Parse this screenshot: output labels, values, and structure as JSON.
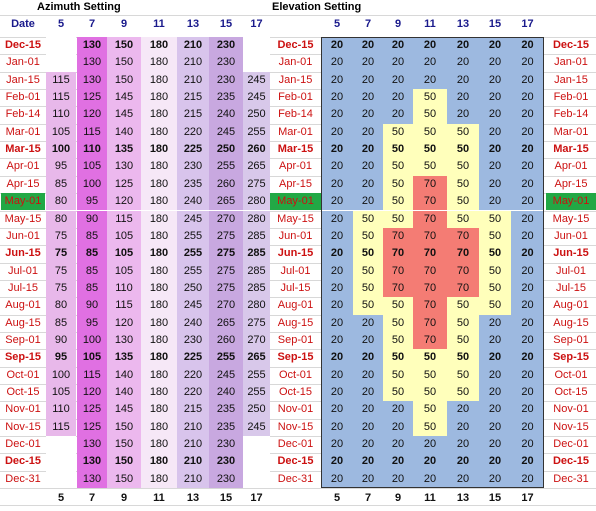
{
  "sections": {
    "azimuth_title": "Azimuth Setting",
    "elevation_title": "Elevation Setting"
  },
  "header": {
    "date": "Date",
    "hours": [
      "5",
      "7",
      "9",
      "11",
      "13",
      "15",
      "17"
    ]
  },
  "colors": {
    "date_text": "#cc1111",
    "header_text": "#1a1a8c",
    "highlight_row": "#22a845",
    "elev_low": "#9db9e0",
    "elev_mid": "#ffffbb",
    "elev_high": "#f47c74",
    "az_col_5": "#e8b8ea",
    "az_col_7": "#e070e2",
    "az_col_9": "#ecb8ee",
    "az_col_11": "#f6e8f7",
    "az_col_13": "#d8c4ec",
    "az_col_15": "#c8a8e0",
    "az_col_17": "#d8c8ea"
  },
  "rows": [
    {
      "date": "Dec-15",
      "bold": true,
      "az": [
        "",
        "130",
        "150",
        "180",
        "210",
        "230",
        ""
      ],
      "el": [
        "20",
        "20",
        "20",
        "20",
        "20",
        "20",
        "20"
      ]
    },
    {
      "date": "Jan-01",
      "bold": false,
      "az": [
        "",
        "130",
        "150",
        "180",
        "210",
        "230",
        ""
      ],
      "el": [
        "20",
        "20",
        "20",
        "20",
        "20",
        "20",
        "20"
      ]
    },
    {
      "date": "Jan-15",
      "bold": false,
      "az": [
        "115",
        "130",
        "150",
        "180",
        "210",
        "230",
        "245"
      ],
      "el": [
        "20",
        "20",
        "20",
        "20",
        "20",
        "20",
        "20"
      ]
    },
    {
      "date": "Feb-01",
      "bold": false,
      "az": [
        "115",
        "125",
        "145",
        "180",
        "215",
        "235",
        "245"
      ],
      "el": [
        "20",
        "20",
        "20",
        "50",
        "20",
        "20",
        "20"
      ]
    },
    {
      "date": "Feb-14",
      "bold": false,
      "az": [
        "110",
        "120",
        "145",
        "180",
        "215",
        "240",
        "250"
      ],
      "el": [
        "20",
        "20",
        "20",
        "50",
        "20",
        "20",
        "20"
      ]
    },
    {
      "date": "Mar-01",
      "bold": false,
      "az": [
        "105",
        "115",
        "140",
        "180",
        "220",
        "245",
        "255"
      ],
      "el": [
        "20",
        "20",
        "50",
        "50",
        "50",
        "20",
        "20"
      ]
    },
    {
      "date": "Mar-15",
      "bold": true,
      "az": [
        "100",
        "110",
        "135",
        "180",
        "225",
        "250",
        "260"
      ],
      "el": [
        "20",
        "20",
        "50",
        "50",
        "50",
        "20",
        "20"
      ]
    },
    {
      "date": "Apr-01",
      "bold": false,
      "az": [
        "95",
        "105",
        "130",
        "180",
        "230",
        "255",
        "265"
      ],
      "el": [
        "20",
        "20",
        "50",
        "50",
        "50",
        "20",
        "20"
      ]
    },
    {
      "date": "Apr-15",
      "bold": false,
      "az": [
        "85",
        "100",
        "125",
        "180",
        "235",
        "260",
        "275"
      ],
      "el": [
        "20",
        "20",
        "50",
        "70",
        "50",
        "20",
        "20"
      ]
    },
    {
      "date": "May-01",
      "bold": false,
      "az": [
        "80",
        "95",
        "120",
        "180",
        "240",
        "265",
        "280"
      ],
      "el": [
        "20",
        "20",
        "50",
        "70",
        "50",
        "20",
        "20"
      ]
    },
    {
      "date": "May-15",
      "bold": false,
      "az": [
        "80",
        "90",
        "115",
        "180",
        "245",
        "270",
        "280"
      ],
      "el": [
        "20",
        "50",
        "50",
        "70",
        "50",
        "50",
        "20"
      ]
    },
    {
      "date": "Jun-01",
      "bold": false,
      "az": [
        "75",
        "85",
        "105",
        "180",
        "255",
        "275",
        "285"
      ],
      "el": [
        "20",
        "50",
        "70",
        "70",
        "70",
        "50",
        "20"
      ]
    },
    {
      "date": "Jun-15",
      "bold": true,
      "az": [
        "75",
        "85",
        "105",
        "180",
        "255",
        "275",
        "285"
      ],
      "el": [
        "20",
        "50",
        "70",
        "70",
        "70",
        "50",
        "20"
      ]
    },
    {
      "date": "Jul-01",
      "bold": false,
      "az": [
        "75",
        "85",
        "105",
        "180",
        "255",
        "275",
        "285"
      ],
      "el": [
        "20",
        "50",
        "70",
        "70",
        "70",
        "50",
        "20"
      ]
    },
    {
      "date": "Jul-15",
      "bold": false,
      "az": [
        "75",
        "85",
        "110",
        "180",
        "250",
        "275",
        "285"
      ],
      "el": [
        "20",
        "50",
        "70",
        "70",
        "70",
        "50",
        "20"
      ]
    },
    {
      "date": "Aug-01",
      "bold": false,
      "az": [
        "80",
        "90",
        "115",
        "180",
        "245",
        "270",
        "280"
      ],
      "el": [
        "20",
        "50",
        "50",
        "70",
        "50",
        "50",
        "20"
      ]
    },
    {
      "date": "Aug-15",
      "bold": false,
      "az": [
        "85",
        "95",
        "120",
        "180",
        "240",
        "265",
        "275"
      ],
      "el": [
        "20",
        "20",
        "50",
        "70",
        "50",
        "20",
        "20"
      ]
    },
    {
      "date": "Sep-01",
      "bold": false,
      "az": [
        "90",
        "100",
        "130",
        "180",
        "230",
        "260",
        "270"
      ],
      "el": [
        "20",
        "20",
        "50",
        "70",
        "50",
        "20",
        "20"
      ]
    },
    {
      "date": "Sep-15",
      "bold": true,
      "az": [
        "95",
        "105",
        "135",
        "180",
        "225",
        "255",
        "265"
      ],
      "el": [
        "20",
        "20",
        "50",
        "50",
        "50",
        "20",
        "20"
      ]
    },
    {
      "date": "Oct-01",
      "bold": false,
      "az": [
        "100",
        "115",
        "140",
        "180",
        "220",
        "245",
        "255"
      ],
      "el": [
        "20",
        "20",
        "50",
        "50",
        "50",
        "20",
        "20"
      ]
    },
    {
      "date": "Oct-15",
      "bold": false,
      "az": [
        "105",
        "120",
        "140",
        "180",
        "220",
        "240",
        "255"
      ],
      "el": [
        "20",
        "20",
        "50",
        "50",
        "50",
        "20",
        "20"
      ]
    },
    {
      "date": "Nov-01",
      "bold": false,
      "az": [
        "110",
        "125",
        "145",
        "180",
        "215",
        "235",
        "250"
      ],
      "el": [
        "20",
        "20",
        "20",
        "50",
        "20",
        "20",
        "20"
      ]
    },
    {
      "date": "Nov-15",
      "bold": false,
      "az": [
        "115",
        "125",
        "150",
        "180",
        "210",
        "235",
        "245"
      ],
      "el": [
        "20",
        "20",
        "20",
        "50",
        "20",
        "20",
        "20"
      ]
    },
    {
      "date": "Dec-01",
      "bold": false,
      "az": [
        "",
        "130",
        "150",
        "180",
        "210",
        "230",
        ""
      ],
      "el": [
        "20",
        "20",
        "20",
        "20",
        "20",
        "20",
        "20"
      ]
    },
    {
      "date": "Dec-15",
      "bold": true,
      "az": [
        "",
        "130",
        "150",
        "180",
        "210",
        "230",
        ""
      ],
      "el": [
        "20",
        "20",
        "20",
        "20",
        "20",
        "20",
        "20"
      ]
    },
    {
      "date": "Dec-31",
      "bold": false,
      "az": [
        "",
        "130",
        "150",
        "180",
        "210",
        "230",
        ""
      ],
      "el": [
        "20",
        "20",
        "20",
        "20",
        "20",
        "20",
        "20"
      ]
    }
  ],
  "highlight_row_index": 9
}
